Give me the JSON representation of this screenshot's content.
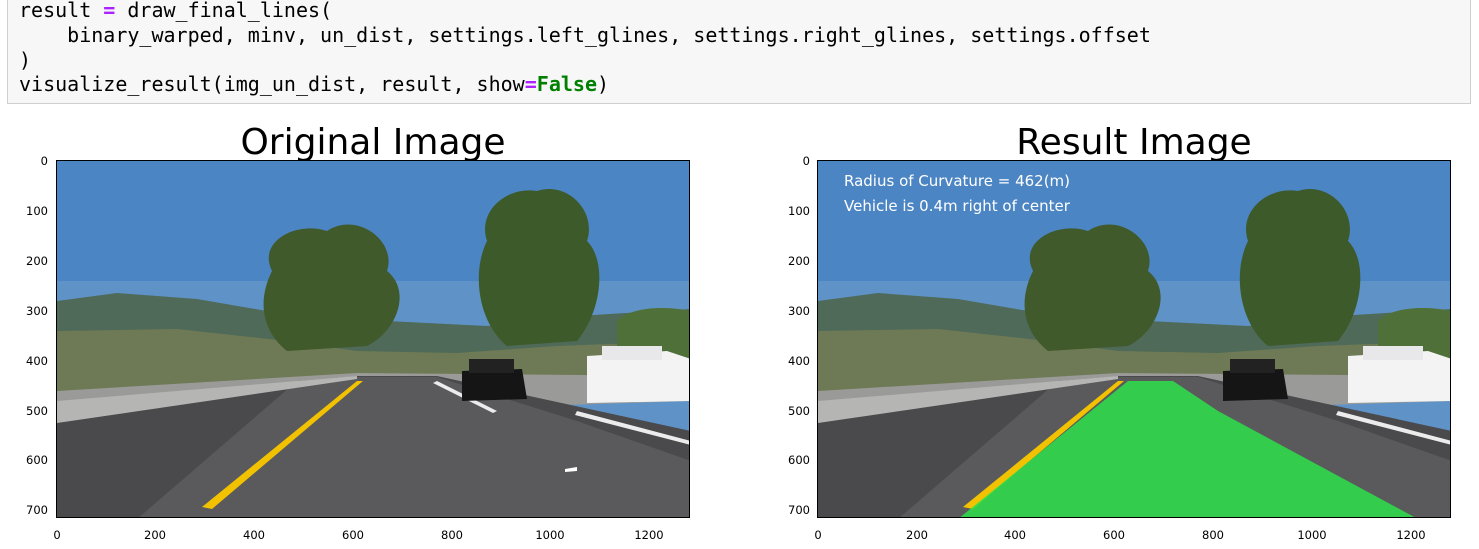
{
  "code_cell": {
    "line1": {
      "a": "result ",
      "op": "=",
      "b": " draw_final_lines("
    },
    "line2": "    binary_warped, minv, un_dist, settings.left_glines, settings.right_glines, settings.offset",
    "line3": ")",
    "line4": {
      "a": "visualize_result(img_un_dist, result, show",
      "op": "=",
      "kw": "False",
      "b": ")"
    }
  },
  "figures": {
    "left": {
      "title": "Original Image"
    },
    "right": {
      "title": "Result Image",
      "overlay": {
        "line1": "Radius of Curvature = 462(m)",
        "line2": "Vehicle is 0.4m right of center"
      }
    },
    "x_ticks": [
      "0",
      "200",
      "400",
      "600",
      "800",
      "1000",
      "1200"
    ],
    "y_ticks": [
      "0",
      "100",
      "200",
      "300",
      "400",
      "500",
      "600",
      "700"
    ]
  },
  "colors": {
    "sky": "#5f93c8",
    "road": "#4a4a4c",
    "lane_fill": "#2ee04a",
    "yellow_line": "#f2c200"
  }
}
